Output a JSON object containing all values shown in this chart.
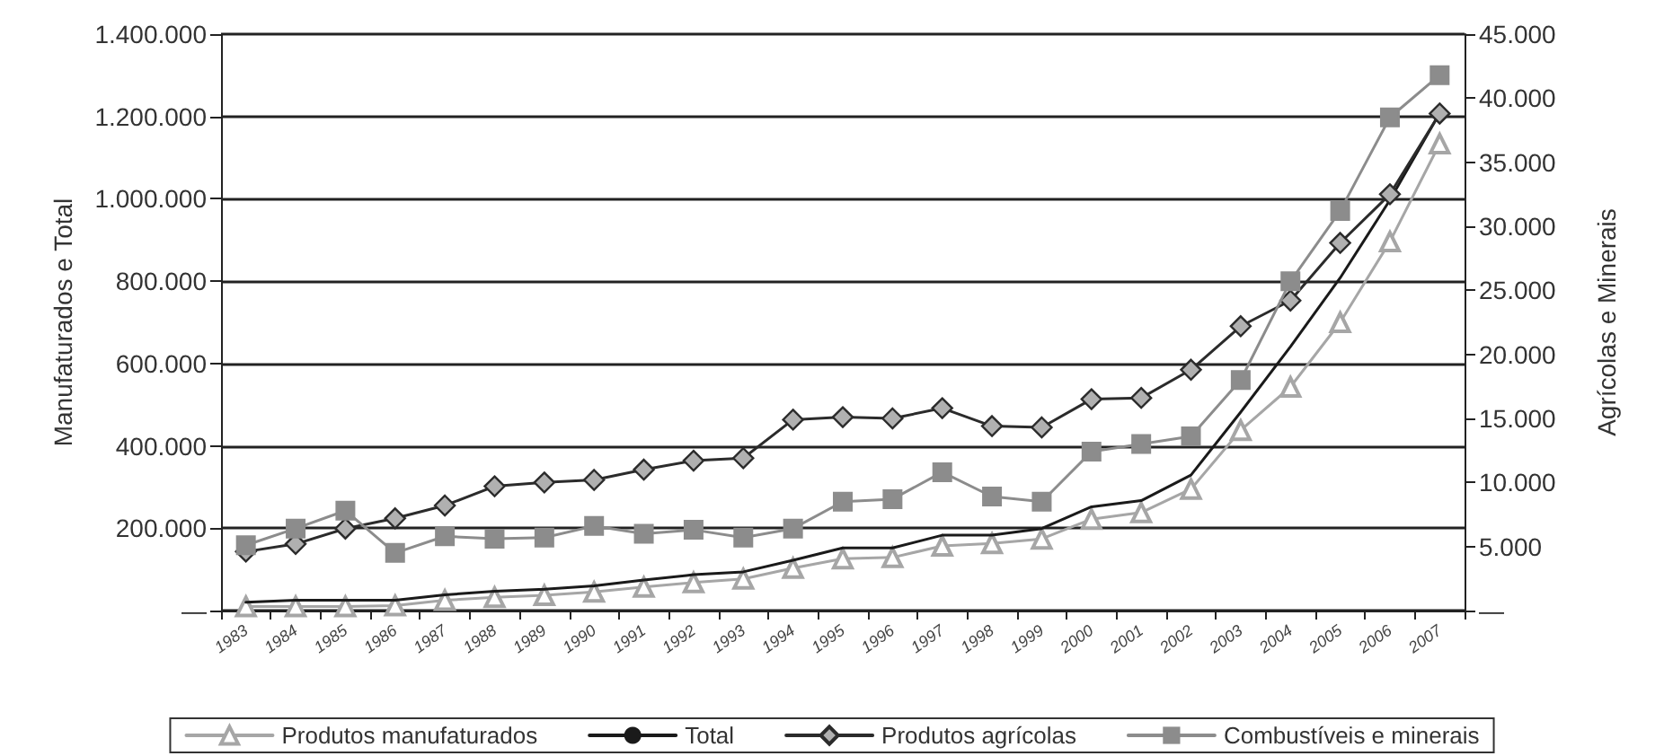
{
  "chart_data": {
    "type": "line",
    "ylabel": "Manufaturados e Total",
    "y2label": "Agrícolas e Minerais",
    "categories": [
      "1983",
      "1984",
      "1985",
      "1986",
      "1987",
      "1988",
      "1989",
      "1990",
      "1991",
      "1992",
      "1993",
      "1994",
      "1995",
      "1996",
      "1997",
      "1998",
      "1999",
      "2000",
      "2001",
      "2002",
      "2003",
      "2004",
      "2005",
      "2006",
      "2007"
    ],
    "series": [
      {
        "name": "Produtos manufaturados",
        "color": "#a6a6a6",
        "marker": "triangle",
        "values": [
          10000,
          10000,
          10000,
          12000,
          25000,
          32000,
          37000,
          45000,
          57000,
          68000,
          77000,
          103000,
          126000,
          129000,
          157000,
          163000,
          174000,
          222000,
          238000,
          295000,
          438000,
          543000,
          700000,
          896000,
          1134000
        ]
      },
      {
        "name": "Total",
        "color": "#1a1a1a",
        "marker": "none",
        "values": [
          20000,
          25000,
          25000,
          25000,
          38000,
          47000,
          52000,
          60000,
          74000,
          87000,
          94000,
          122000,
          152000,
          152000,
          183000,
          183000,
          199000,
          252000,
          267000,
          329000,
          482000,
          641000,
          808000,
          997000,
          1208000
        ]
      },
      {
        "name": "Produtos agrícolas",
        "color": "#2b2b2b",
        "marker": "diamond",
        "axis": "y2",
        "values": [
          4600,
          5200,
          6400,
          7200,
          8200,
          9700,
          10000,
          10200,
          11000,
          11700,
          11900,
          14900,
          15100,
          15000,
          15800,
          14400,
          14300,
          16500,
          16600,
          18800,
          22200,
          24200,
          28700,
          32500,
          38800
        ]
      },
      {
        "name": "Combustíveis e minerais",
        "color": "#8c8c8c",
        "marker": "square",
        "axis": "y2",
        "values": [
          5100,
          6400,
          7800,
          4500,
          5800,
          5600,
          5700,
          6600,
          6000,
          6300,
          5700,
          6400,
          8500,
          8700,
          10800,
          8900,
          8500,
          12400,
          13000,
          13600,
          18000,
          25700,
          31200,
          38500,
          41800
        ]
      }
    ],
    "ylim": [
      0,
      1400000
    ],
    "yticks": [
      {
        "value": 0,
        "label": "—"
      },
      {
        "value": 200000,
        "label": "200.000"
      },
      {
        "value": 400000,
        "label": "400.000"
      },
      {
        "value": 600000,
        "label": "600.000"
      },
      {
        "value": 800000,
        "label": "800.000"
      },
      {
        "value": 1000000,
        "label": "1.000.000"
      },
      {
        "value": 1200000,
        "label": "1.200.000"
      },
      {
        "value": 1400000,
        "label": "1.400.000"
      }
    ],
    "y2lim": [
      0,
      45000
    ],
    "y2ticks": [
      {
        "value": 0,
        "label": "—"
      },
      {
        "value": 5000,
        "label": "5.000"
      },
      {
        "value": 10000,
        "label": "10.000"
      },
      {
        "value": 15000,
        "label": "15.000"
      },
      {
        "value": 20000,
        "label": "20.000"
      },
      {
        "value": 25000,
        "label": "25.000"
      },
      {
        "value": 30000,
        "label": "30.000"
      },
      {
        "value": 35000,
        "label": "35.000"
      },
      {
        "value": 40000,
        "label": "40.000"
      },
      {
        "value": 45000,
        "label": "45.000"
      }
    ],
    "grid": "y",
    "legend": "bottom",
    "line_style": "solid"
  }
}
